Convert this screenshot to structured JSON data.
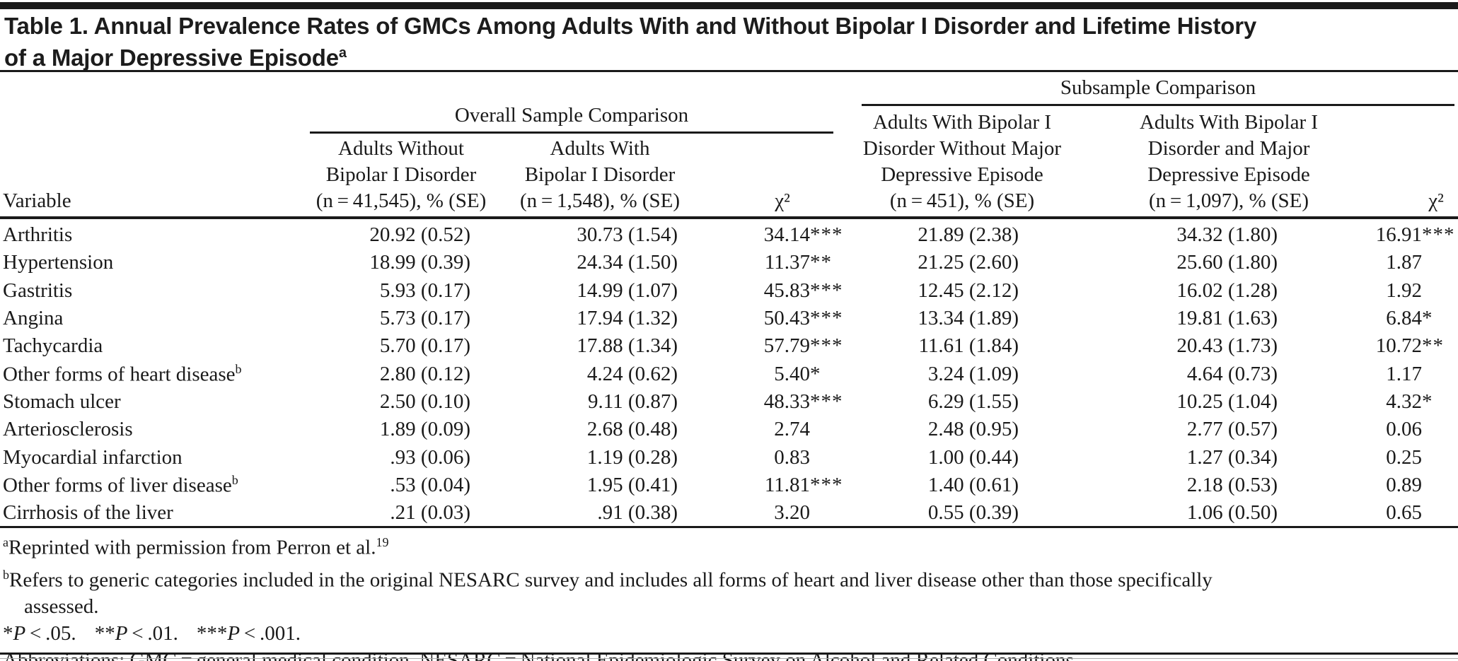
{
  "title": {
    "line1": "Table 1. Annual Prevalence Rates of GMCs Among Adults With and Without Bipolar I Disorder and Lifetime History",
    "line2": "of a Major Depressive Episode",
    "sup": "a"
  },
  "table": {
    "spanners": {
      "overall": "Overall Sample Comparison",
      "subsample": "Subsample Comparison"
    },
    "columns": {
      "variable": "Variable",
      "without_bd": [
        "Adults Without",
        "Bipolar I Disorder",
        "(n = 41,545), % (SE)"
      ],
      "with_bd": [
        "Adults With",
        "Bipolar I Disorder",
        "(n = 1,548), % (SE)"
      ],
      "chi_overall": "χ²",
      "bd_without_mde": [
        "Adults With Bipolar I",
        "Disorder Without Major",
        "Depressive Episode",
        "(n = 451), % (SE)"
      ],
      "bd_with_mde": [
        "Adults With Bipolar I",
        "Disorder and Major",
        "Depressive Episode",
        "(n = 1,097), % (SE)"
      ],
      "chi_subsample": "χ²"
    },
    "rows": [
      {
        "variable": "Arthritis",
        "sup": "",
        "without_bd": "20.92 (0.52)",
        "with_bd": "30.73 (1.54)",
        "chi_overall": "34.14",
        "chi_overall_stars": "***",
        "bd_without_mde": "21.89 (2.38)",
        "bd_with_mde": "34.32 (1.80)",
        "chi_subsample": "16.91",
        "chi_subsample_stars": "***"
      },
      {
        "variable": "Hypertension",
        "sup": "",
        "without_bd": "18.99 (0.39)",
        "with_bd": "24.34 (1.50)",
        "chi_overall": "11.37",
        "chi_overall_stars": "**",
        "bd_without_mde": "21.25 (2.60)",
        "bd_with_mde": "25.60 (1.80)",
        "chi_subsample": "1.87",
        "chi_subsample_stars": ""
      },
      {
        "variable": "Gastritis",
        "sup": "",
        "without_bd": "5.93 (0.17)",
        "with_bd": "14.99 (1.07)",
        "chi_overall": "45.83",
        "chi_overall_stars": "***",
        "bd_without_mde": "12.45 (2.12)",
        "bd_with_mde": "16.02 (1.28)",
        "chi_subsample": "1.92",
        "chi_subsample_stars": ""
      },
      {
        "variable": "Angina",
        "sup": "",
        "without_bd": "5.73 (0.17)",
        "with_bd": "17.94 (1.32)",
        "chi_overall": "50.43",
        "chi_overall_stars": "***",
        "bd_without_mde": "13.34 (1.89)",
        "bd_with_mde": "19.81 (1.63)",
        "chi_subsample": "6.84",
        "chi_subsample_stars": "*"
      },
      {
        "variable": "Tachycardia",
        "sup": "",
        "without_bd": "5.70 (0.17)",
        "with_bd": "17.88 (1.34)",
        "chi_overall": "57.79",
        "chi_overall_stars": "***",
        "bd_without_mde": "11.61 (1.84)",
        "bd_with_mde": "20.43 (1.73)",
        "chi_subsample": "10.72",
        "chi_subsample_stars": "**"
      },
      {
        "variable": "Other forms of heart disease",
        "sup": "b",
        "without_bd": "2.80 (0.12)",
        "with_bd": "4.24 (0.62)",
        "chi_overall": "5.40",
        "chi_overall_stars": "*",
        "bd_without_mde": "3.24 (1.09)",
        "bd_with_mde": "4.64 (0.73)",
        "chi_subsample": "1.17",
        "chi_subsample_stars": ""
      },
      {
        "variable": "Stomach ulcer",
        "sup": "",
        "without_bd": "2.50 (0.10)",
        "with_bd": "9.11 (0.87)",
        "chi_overall": "48.33",
        "chi_overall_stars": "***",
        "bd_without_mde": "6.29 (1.55)",
        "bd_with_mde": "10.25 (1.04)",
        "chi_subsample": "4.32",
        "chi_subsample_stars": "*"
      },
      {
        "variable": "Arteriosclerosis",
        "sup": "",
        "without_bd": "1.89 (0.09)",
        "with_bd": "2.68 (0.48)",
        "chi_overall": "2.74",
        "chi_overall_stars": "",
        "bd_without_mde": "2.48 (0.95)",
        "bd_with_mde": "2.77 (0.57)",
        "chi_subsample": "0.06",
        "chi_subsample_stars": ""
      },
      {
        "variable": "Myocardial infarction",
        "sup": "",
        "without_bd": ".93 (0.06)",
        "with_bd": "1.19 (0.28)",
        "chi_overall": "0.83",
        "chi_overall_stars": "",
        "bd_without_mde": "1.00 (0.44)",
        "bd_with_mde": "1.27 (0.34)",
        "chi_subsample": "0.25",
        "chi_subsample_stars": ""
      },
      {
        "variable": "Other forms of liver disease",
        "sup": "b",
        "without_bd": ".53 (0.04)",
        "with_bd": "1.95 (0.41)",
        "chi_overall": "11.81",
        "chi_overall_stars": "***",
        "bd_without_mde": "1.40 (0.61)",
        "bd_with_mde": "2.18 (0.53)",
        "chi_subsample": "0.89",
        "chi_subsample_stars": ""
      },
      {
        "variable": "Cirrhosis of the liver",
        "sup": "",
        "without_bd": ".21 (0.03)",
        "with_bd": ".91 (0.38)",
        "chi_overall": "3.20",
        "chi_overall_stars": "",
        "bd_without_mde": "0.55 (0.39)",
        "bd_with_mde": "1.06 (0.50)",
        "chi_subsample": "0.65",
        "chi_subsample_stars": ""
      }
    ]
  },
  "footnotes": {
    "a": {
      "sup": "a",
      "text": "Reprinted with permission from Perron et al.",
      "sup2": "19"
    },
    "b": {
      "sup": "b",
      "line1": "Refers to generic categories included in the original NESARC survey and includes all forms of heart and liver disease other than those specifically",
      "line2": "assessed."
    },
    "sig": [
      {
        "stars": "*",
        "p": "P",
        "rest": " < .05."
      },
      {
        "stars": "**",
        "p": "P",
        "rest": " < .01."
      },
      {
        "stars": "***",
        "p": "P",
        "rest": " < .001."
      }
    ],
    "abbreviations": "Abbreviations: GMC = general medical condition, NESARC = National Epidemiologic Survey on Alcohol and Related Conditions."
  },
  "colors": {
    "text": "#1a1a1a",
    "rule": "#1a1a1a"
  }
}
